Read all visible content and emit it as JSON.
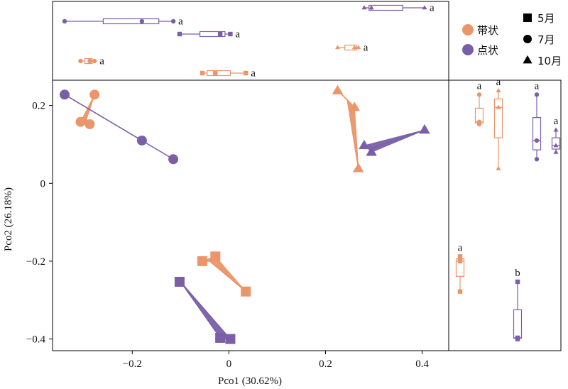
{
  "colors": {
    "band": "#EA956A",
    "dot": "#7A5FA6",
    "frame": "#000000",
    "ink": "#111111"
  },
  "legend": {
    "groups": [
      {
        "label": "带状",
        "color_key": "band"
      },
      {
        "label": "点状",
        "color_key": "dot"
      }
    ],
    "months": [
      {
        "label": "5月",
        "shape": "square"
      },
      {
        "label": "7月",
        "shape": "circle"
      },
      {
        "label": "10月",
        "shape": "triangle"
      }
    ]
  },
  "chart_data": {
    "type": "scatter",
    "xlabel": "Pco1 (30.62%)",
    "ylabel": "Pco2 (26.18%)",
    "xlim": [
      -0.365,
      0.455
    ],
    "ylim": [
      -0.43,
      0.265
    ],
    "xticks": [
      -0.2,
      0,
      0.2,
      0.4
    ],
    "xtick_labels": [
      "−0.2",
      "0",
      "0.2",
      "0.4"
    ],
    "yticks": [
      -0.4,
      -0.2,
      0,
      0.2
    ],
    "ytick_labels": [
      "−0.4",
      "−0.2",
      "0",
      "0.2"
    ],
    "series": [
      {
        "group": "band",
        "month": "7月",
        "shape": "circle",
        "points": [
          [
            -0.278,
            0.228
          ],
          [
            -0.307,
            0.158
          ],
          [
            -0.288,
            0.152
          ]
        ],
        "centroid": [
          -0.295,
          0.165
        ]
      },
      {
        "group": "dot",
        "month": "7月",
        "shape": "circle",
        "points": [
          [
            -0.34,
            0.228
          ],
          [
            -0.18,
            0.11
          ],
          [
            -0.115,
            0.062
          ]
        ],
        "centroid": [
          -0.34,
          0.228
        ]
      },
      {
        "group": "band",
        "month": "10月",
        "shape": "triangle",
        "points": [
          [
            0.225,
            0.238
          ],
          [
            0.26,
            0.195
          ],
          [
            0.268,
            0.038
          ]
        ],
        "centroid": [
          0.245,
          0.215
        ]
      },
      {
        "group": "dot",
        "month": "10月",
        "shape": "triangle",
        "points": [
          [
            0.295,
            0.08
          ],
          [
            0.405,
            0.137
          ],
          [
            0.28,
            0.097
          ]
        ],
        "centroid": [
          0.29,
          0.088
        ]
      },
      {
        "group": "band",
        "month": "5月",
        "shape": "square",
        "points": [
          [
            -0.055,
            -0.2
          ],
          [
            -0.028,
            -0.188
          ],
          [
            0.035,
            -0.278
          ]
        ],
        "centroid": [
          -0.04,
          -0.2
        ]
      },
      {
        "group": "dot",
        "month": "5月",
        "shape": "square",
        "points": [
          [
            -0.018,
            -0.397
          ],
          [
            0.003,
            -0.4
          ],
          [
            -0.102,
            -0.253
          ]
        ],
        "centroid": [
          -0.1,
          -0.253
        ]
      }
    ],
    "top_boxplots": [
      {
        "group": "dot",
        "month": "10月",
        "shape": "triangle",
        "min": 0.28,
        "q1": 0.29,
        "median": 0.295,
        "q3": 0.36,
        "max": 0.405,
        "points": [
          0.28,
          0.295,
          0.405
        ],
        "letter": "a"
      },
      {
        "group": "dot",
        "month": "7月",
        "shape": "circle",
        "min": -0.34,
        "q1": -0.26,
        "median": -0.18,
        "q3": -0.145,
        "max": -0.115,
        "points": [
          -0.34,
          -0.18,
          -0.115
        ],
        "letter": "a"
      },
      {
        "group": "dot",
        "month": "5月",
        "shape": "square",
        "min": -0.102,
        "q1": -0.06,
        "median": -0.018,
        "q3": -0.008,
        "max": 0.003,
        "points": [
          -0.102,
          -0.018,
          0.003
        ],
        "letter": "a"
      },
      {
        "group": "band",
        "month": "10月",
        "shape": "triangle",
        "min": 0.225,
        "q1": 0.24,
        "median": 0.26,
        "q3": 0.264,
        "max": 0.268,
        "points": [
          0.225,
          0.26,
          0.268
        ],
        "letter": "a"
      },
      {
        "group": "band",
        "month": "7月",
        "shape": "circle",
        "min": -0.307,
        "q1": -0.298,
        "median": -0.288,
        "q3": -0.283,
        "max": -0.278,
        "points": [
          -0.307,
          -0.288,
          -0.278
        ],
        "letter": "a"
      },
      {
        "group": "band",
        "month": "5月",
        "shape": "square",
        "min": -0.055,
        "q1": -0.045,
        "median": -0.028,
        "q3": 0.003,
        "max": 0.035,
        "points": [
          -0.055,
          -0.028,
          0.035
        ],
        "letter": "a"
      }
    ],
    "side_boxplots": [
      {
        "group": "band",
        "month": "7月",
        "shape": "circle",
        "min": 0.152,
        "q1": 0.155,
        "median": 0.158,
        "q3": 0.193,
        "max": 0.228,
        "points": [
          0.152,
          0.158,
          0.228
        ],
        "letter": "a"
      },
      {
        "group": "band",
        "month": "10月",
        "shape": "triangle",
        "min": 0.038,
        "q1": 0.117,
        "median": 0.195,
        "q3": 0.217,
        "max": 0.238,
        "points": [
          0.038,
          0.195,
          0.238
        ],
        "letter": "a"
      },
      {
        "group": "dot",
        "month": "7月",
        "shape": "circle",
        "min": 0.062,
        "q1": 0.086,
        "median": 0.11,
        "q3": 0.169,
        "max": 0.228,
        "points": [
          0.062,
          0.11,
          0.228
        ],
        "letter": "a"
      },
      {
        "group": "dot",
        "month": "10月",
        "shape": "triangle",
        "min": 0.08,
        "q1": 0.088,
        "median": 0.097,
        "q3": 0.117,
        "max": 0.137,
        "points": [
          0.08,
          0.097,
          0.137
        ],
        "letter": "a"
      },
      {
        "group": "band",
        "month": "5月",
        "shape": "square",
        "min": -0.278,
        "q1": -0.239,
        "median": -0.2,
        "q3": -0.194,
        "max": -0.188,
        "points": [
          -0.278,
          -0.2,
          -0.188
        ],
        "letter": "a"
      },
      {
        "group": "dot",
        "month": "5月",
        "shape": "square",
        "min": -0.4,
        "q1": -0.398,
        "median": -0.397,
        "q3": -0.325,
        "max": -0.253,
        "points": [
          -0.4,
          -0.397,
          -0.253
        ],
        "letter": "b"
      }
    ]
  }
}
